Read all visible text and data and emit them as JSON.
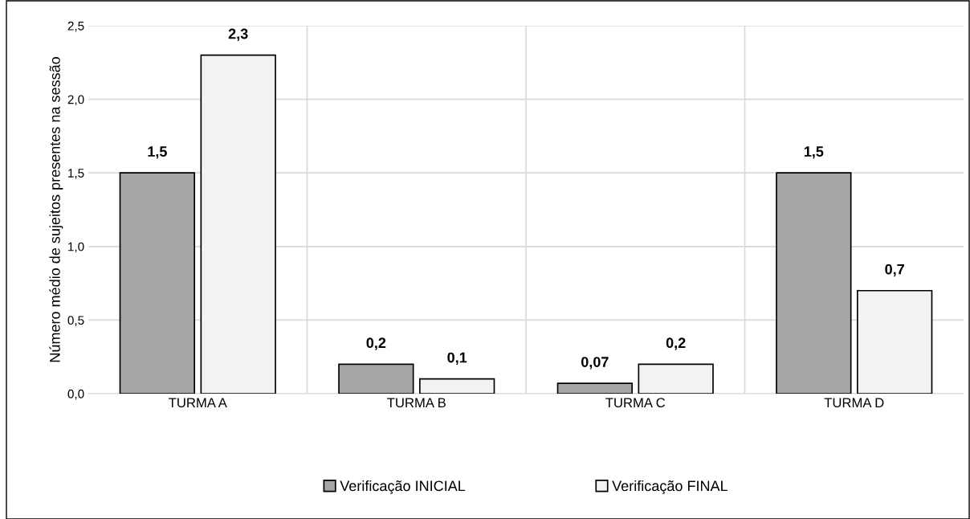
{
  "chart_data": {
    "type": "bar",
    "ylabel": "Número médio de sujeitos presentes na sessão",
    "categories": [
      "TURMA A",
      "TURMA B",
      "TURMA C",
      "TURMA D"
    ],
    "series": [
      {
        "name": "Verificação INICIAL",
        "color": "#a6a6a6",
        "values": [
          1.5,
          0.2,
          0.07,
          1.5
        ],
        "value_labels": [
          "1,5",
          "0,2",
          "0,07",
          "1,5"
        ]
      },
      {
        "name": "Verificação FINAL",
        "color": "#f2f2f2",
        "values": [
          2.3,
          0.1,
          0.2,
          0.7
        ],
        "value_labels": [
          "2,3",
          "0,1",
          "0,2",
          "0,7"
        ]
      }
    ],
    "ylim": [
      0,
      2.5
    ],
    "yticks": [
      {
        "value": 0,
        "label": "0,0"
      },
      {
        "value": 0.5,
        "label": "0,5"
      },
      {
        "value": 1,
        "label": "1,0"
      },
      {
        "value": 1.5,
        "label": "1,5"
      },
      {
        "value": 2,
        "label": "2,0"
      },
      {
        "value": 2.5,
        "label": "2,5"
      }
    ],
    "grid": true,
    "legend": "bottom"
  }
}
